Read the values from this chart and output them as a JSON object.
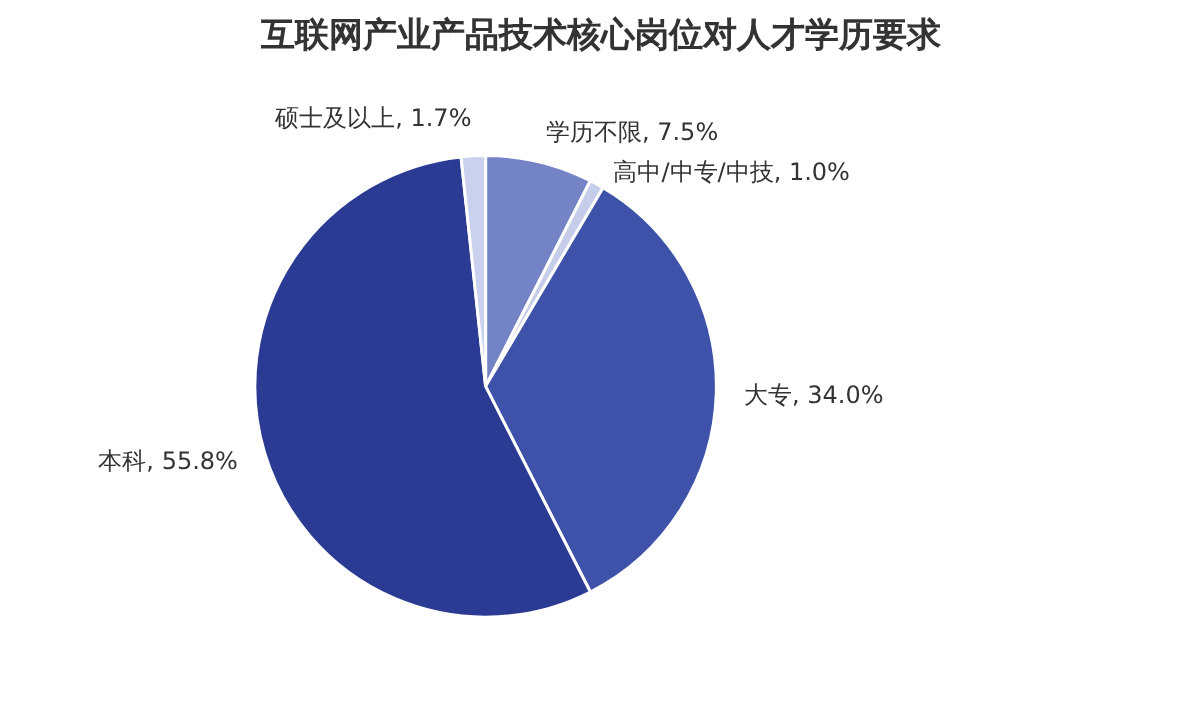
{
  "chart_data": {
    "type": "pie",
    "title": "互联网产业产品技术核心岗位对人才学历要求",
    "categories": [
      "学历不限",
      "高中/中专/中技",
      "大专",
      "本科",
      "硕士及以上"
    ],
    "values": [
      7.5,
      1.0,
      34.0,
      55.8,
      1.7
    ],
    "value_labels": [
      "7.5%",
      "1.0%",
      "34.0%",
      "55.8%",
      "1.7%"
    ],
    "colors": [
      "#7383c6",
      "#c5cdea",
      "#3d52a8",
      "#2b3b93",
      "#c9d1ee"
    ]
  }
}
